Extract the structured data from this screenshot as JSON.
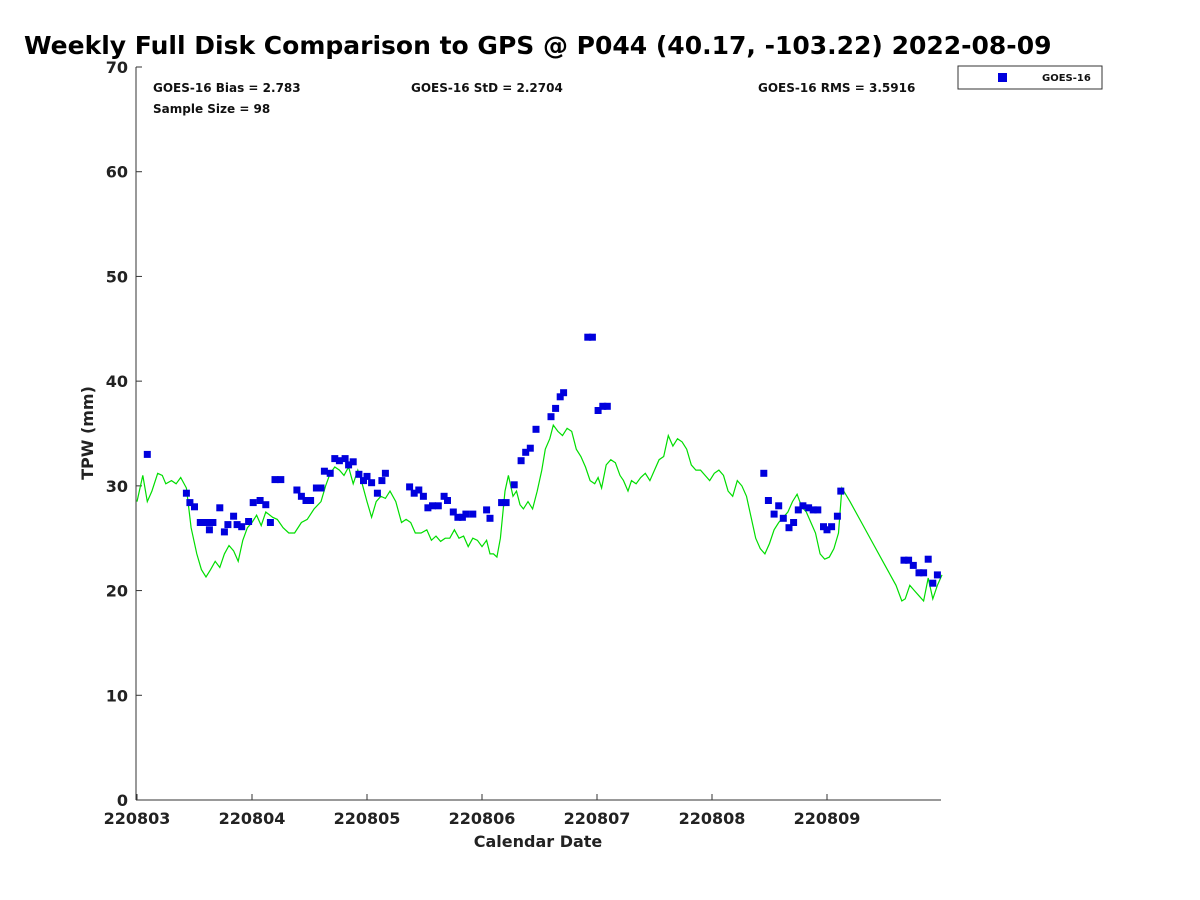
{
  "chart_data": {
    "type": "scatter",
    "title": "Weekly Full Disk Comparison to GPS @ P044 (40.17, -103.22) 2022-08-09",
    "xlabel": "Calendar Date",
    "ylabel": "TPW (mm)",
    "ylim": [
      0,
      70
    ],
    "yticks": [
      0,
      10,
      20,
      30,
      40,
      50,
      60,
      70
    ],
    "xlim": [
      0,
      7
    ],
    "xticks": [
      {
        "pos": 0,
        "label": "220803"
      },
      {
        "pos": 1,
        "label": "220804"
      },
      {
        "pos": 2,
        "label": "220805"
      },
      {
        "pos": 3,
        "label": "220806"
      },
      {
        "pos": 4,
        "label": "220807"
      },
      {
        "pos": 5,
        "label": "220808"
      },
      {
        "pos": 6,
        "label": "220809"
      }
    ],
    "grid": false,
    "legend_position": "top-right, outside plot",
    "colors": {
      "goes": "#0000dd",
      "gps": "#00dd00",
      "axis": "#333333"
    },
    "stats": {
      "bias": "GOES-16 Bias = 2.783",
      "sample": "Sample Size = 98",
      "std": "GOES-16 StD = 2.2704",
      "rms": "GOES-16 RMS = 3.5916"
    },
    "series": [
      {
        "name": "GOES-16",
        "marker": "square",
        "color": "#0000dd",
        "points": [
          [
            0.09,
            33.0
          ],
          [
            0.43,
            29.3
          ],
          [
            0.46,
            28.4
          ],
          [
            0.5,
            28.0
          ],
          [
            0.55,
            26.5
          ],
          [
            0.6,
            26.5
          ],
          [
            0.63,
            25.8
          ],
          [
            0.66,
            26.5
          ],
          [
            0.72,
            27.9
          ],
          [
            0.76,
            25.6
          ],
          [
            0.79,
            26.3
          ],
          [
            0.84,
            27.1
          ],
          [
            0.87,
            26.3
          ],
          [
            0.91,
            26.1
          ],
          [
            0.97,
            26.6
          ],
          [
            1.01,
            28.4
          ],
          [
            1.07,
            28.6
          ],
          [
            1.12,
            28.2
          ],
          [
            1.16,
            26.5
          ],
          [
            1.2,
            30.6
          ],
          [
            1.25,
            30.6
          ],
          [
            1.39,
            29.6
          ],
          [
            1.43,
            29.0
          ],
          [
            1.47,
            28.6
          ],
          [
            1.51,
            28.6
          ],
          [
            1.56,
            29.8
          ],
          [
            1.6,
            29.8
          ],
          [
            1.63,
            31.4
          ],
          [
            1.68,
            31.2
          ],
          [
            1.72,
            32.6
          ],
          [
            1.76,
            32.4
          ],
          [
            1.81,
            32.6
          ],
          [
            1.84,
            32.0
          ],
          [
            1.88,
            32.3
          ],
          [
            1.93,
            31.1
          ],
          [
            1.97,
            30.5
          ],
          [
            2.0,
            30.9
          ],
          [
            2.04,
            30.3
          ],
          [
            2.09,
            29.3
          ],
          [
            2.13,
            30.5
          ],
          [
            2.16,
            31.2
          ],
          [
            2.37,
            29.9
          ],
          [
            2.41,
            29.3
          ],
          [
            2.45,
            29.6
          ],
          [
            2.49,
            29.0
          ],
          [
            2.53,
            27.9
          ],
          [
            2.57,
            28.1
          ],
          [
            2.62,
            28.1
          ],
          [
            2.67,
            29.0
          ],
          [
            2.7,
            28.6
          ],
          [
            2.75,
            27.5
          ],
          [
            2.79,
            27.0
          ],
          [
            2.83,
            27.0
          ],
          [
            2.86,
            27.3
          ],
          [
            2.92,
            27.3
          ],
          [
            3.04,
            27.7
          ],
          [
            3.07,
            26.9
          ],
          [
            3.17,
            28.4
          ],
          [
            3.21,
            28.4
          ],
          [
            3.28,
            30.1
          ],
          [
            3.34,
            32.4
          ],
          [
            3.38,
            33.2
          ],
          [
            3.42,
            33.6
          ],
          [
            3.47,
            35.4
          ],
          [
            3.6,
            36.6
          ],
          [
            3.64,
            37.4
          ],
          [
            3.68,
            38.5
          ],
          [
            3.71,
            38.9
          ],
          [
            3.92,
            44.2
          ],
          [
            3.96,
            44.2
          ],
          [
            4.01,
            37.2
          ],
          [
            4.05,
            37.6
          ],
          [
            4.09,
            37.6
          ],
          [
            5.45,
            31.2
          ],
          [
            5.49,
            28.6
          ],
          [
            5.54,
            27.3
          ],
          [
            5.58,
            28.1
          ],
          [
            5.62,
            26.9
          ],
          [
            5.67,
            26.0
          ],
          [
            5.71,
            26.5
          ],
          [
            5.75,
            27.7
          ],
          [
            5.79,
            28.1
          ],
          [
            5.84,
            27.9
          ],
          [
            5.88,
            27.7
          ],
          [
            5.92,
            27.7
          ],
          [
            5.97,
            26.1
          ],
          [
            6.0,
            25.8
          ],
          [
            6.04,
            26.1
          ],
          [
            6.09,
            27.1
          ],
          [
            6.12,
            29.5
          ],
          [
            6.67,
            22.9
          ],
          [
            6.71,
            22.9
          ],
          [
            6.75,
            22.4
          ],
          [
            6.8,
            21.7
          ],
          [
            6.84,
            21.7
          ],
          [
            6.88,
            23.0
          ],
          [
            6.92,
            20.7
          ],
          [
            6.96,
            21.5
          ]
        ]
      },
      {
        "name": "GPS",
        "line": true,
        "color": "#00dd00",
        "points": [
          [
            0.0,
            28.5
          ],
          [
            0.05,
            31.0
          ],
          [
            0.09,
            28.5
          ],
          [
            0.13,
            29.5
          ],
          [
            0.18,
            31.2
          ],
          [
            0.22,
            31.0
          ],
          [
            0.25,
            30.2
          ],
          [
            0.3,
            30.5
          ],
          [
            0.34,
            30.2
          ],
          [
            0.38,
            30.8
          ],
          [
            0.43,
            29.8
          ],
          [
            0.47,
            26.0
          ],
          [
            0.52,
            23.5
          ],
          [
            0.56,
            22.0
          ],
          [
            0.6,
            21.3
          ],
          [
            0.64,
            22.0
          ],
          [
            0.68,
            22.8
          ],
          [
            0.72,
            22.2
          ],
          [
            0.76,
            23.5
          ],
          [
            0.8,
            24.3
          ],
          [
            0.84,
            23.8
          ],
          [
            0.88,
            22.8
          ],
          [
            0.92,
            24.8
          ],
          [
            0.96,
            26.0
          ],
          [
            1.0,
            26.5
          ],
          [
            1.04,
            27.2
          ],
          [
            1.08,
            26.2
          ],
          [
            1.12,
            27.5
          ],
          [
            1.18,
            27.0
          ],
          [
            1.22,
            26.8
          ],
          [
            1.27,
            26.0
          ],
          [
            1.32,
            25.5
          ],
          [
            1.37,
            25.5
          ],
          [
            1.43,
            26.5
          ],
          [
            1.48,
            26.8
          ],
          [
            1.54,
            27.8
          ],
          [
            1.6,
            28.5
          ],
          [
            1.64,
            30.0
          ],
          [
            1.68,
            31.2
          ],
          [
            1.72,
            31.8
          ],
          [
            1.76,
            31.5
          ],
          [
            1.8,
            31.0
          ],
          [
            1.84,
            31.8
          ],
          [
            1.88,
            30.2
          ],
          [
            1.92,
            31.5
          ],
          [
            1.95,
            30.5
          ],
          [
            2.0,
            28.5
          ],
          [
            2.04,
            27.0
          ],
          [
            2.08,
            28.5
          ],
          [
            2.12,
            29.0
          ],
          [
            2.16,
            28.8
          ],
          [
            2.2,
            29.5
          ],
          [
            2.25,
            28.5
          ],
          [
            2.3,
            26.5
          ],
          [
            2.34,
            26.8
          ],
          [
            2.38,
            26.5
          ],
          [
            2.42,
            25.5
          ],
          [
            2.47,
            25.5
          ],
          [
            2.52,
            25.8
          ],
          [
            2.56,
            24.8
          ],
          [
            2.6,
            25.2
          ],
          [
            2.64,
            24.7
          ],
          [
            2.68,
            25.0
          ],
          [
            2.72,
            25.0
          ],
          [
            2.76,
            25.8
          ],
          [
            2.8,
            25.0
          ],
          [
            2.84,
            25.2
          ],
          [
            2.88,
            24.2
          ],
          [
            2.92,
            25.0
          ],
          [
            2.96,
            24.8
          ],
          [
            3.0,
            24.2
          ],
          [
            3.04,
            24.8
          ],
          [
            3.07,
            23.5
          ],
          [
            3.1,
            23.5
          ],
          [
            3.13,
            23.2
          ],
          [
            3.16,
            25.0
          ],
          [
            3.2,
            29.5
          ],
          [
            3.23,
            31.0
          ],
          [
            3.27,
            29.0
          ],
          [
            3.3,
            29.5
          ],
          [
            3.33,
            28.2
          ],
          [
            3.36,
            27.8
          ],
          [
            3.4,
            28.5
          ],
          [
            3.44,
            27.8
          ],
          [
            3.48,
            29.5
          ],
          [
            3.52,
            31.5
          ],
          [
            3.55,
            33.5
          ],
          [
            3.59,
            34.5
          ],
          [
            3.62,
            35.8
          ],
          [
            3.66,
            35.2
          ],
          [
            3.7,
            34.8
          ],
          [
            3.74,
            35.5
          ],
          [
            3.78,
            35.2
          ],
          [
            3.82,
            33.5
          ],
          [
            3.86,
            32.8
          ],
          [
            3.9,
            31.8
          ],
          [
            3.94,
            30.5
          ],
          [
            3.98,
            30.2
          ],
          [
            4.01,
            30.8
          ],
          [
            4.04,
            29.8
          ],
          [
            4.08,
            32.0
          ],
          [
            4.12,
            32.5
          ],
          [
            4.16,
            32.2
          ],
          [
            4.2,
            31.0
          ],
          [
            4.23,
            30.5
          ],
          [
            4.27,
            29.5
          ],
          [
            4.3,
            30.5
          ],
          [
            4.34,
            30.2
          ],
          [
            4.38,
            30.8
          ],
          [
            4.42,
            31.2
          ],
          [
            4.46,
            30.5
          ],
          [
            4.5,
            31.5
          ],
          [
            4.54,
            32.5
          ],
          [
            4.58,
            32.8
          ],
          [
            4.62,
            34.8
          ],
          [
            4.66,
            33.8
          ],
          [
            4.7,
            34.5
          ],
          [
            4.74,
            34.2
          ],
          [
            4.78,
            33.5
          ],
          [
            4.82,
            32.0
          ],
          [
            4.86,
            31.5
          ],
          [
            4.9,
            31.5
          ],
          [
            4.94,
            31.0
          ],
          [
            4.98,
            30.5
          ],
          [
            5.02,
            31.2
          ],
          [
            5.06,
            31.5
          ],
          [
            5.1,
            31.0
          ],
          [
            5.14,
            29.5
          ],
          [
            5.18,
            29.0
          ],
          [
            5.22,
            30.5
          ],
          [
            5.26,
            30.0
          ],
          [
            5.3,
            29.0
          ],
          [
            5.34,
            27.0
          ],
          [
            5.38,
            25.0
          ],
          [
            5.42,
            24.0
          ],
          [
            5.46,
            23.5
          ],
          [
            5.5,
            24.5
          ],
          [
            5.54,
            25.8
          ],
          [
            5.58,
            26.5
          ],
          [
            5.62,
            27.0
          ],
          [
            5.66,
            27.5
          ],
          [
            5.7,
            28.5
          ],
          [
            5.74,
            29.2
          ],
          [
            5.78,
            28.0
          ],
          [
            5.82,
            27.5
          ],
          [
            5.86,
            26.5
          ],
          [
            5.9,
            25.5
          ],
          [
            5.94,
            23.5
          ],
          [
            5.98,
            23.0
          ],
          [
            6.02,
            23.2
          ],
          [
            6.06,
            24.0
          ],
          [
            6.1,
            25.5
          ],
          [
            6.13,
            29.8
          ],
          [
            6.2,
            28.5
          ],
          [
            6.3,
            26.5
          ],
          [
            6.4,
            24.5
          ],
          [
            6.5,
            22.5
          ],
          [
            6.6,
            20.5
          ],
          [
            6.65,
            19.0
          ],
          [
            6.68,
            19.2
          ],
          [
            6.72,
            20.5
          ],
          [
            6.76,
            20.0
          ],
          [
            6.8,
            19.5
          ],
          [
            6.84,
            19.0
          ],
          [
            6.88,
            21.2
          ],
          [
            6.92,
            19.2
          ],
          [
            6.96,
            20.5
          ],
          [
            7.0,
            21.5
          ]
        ]
      }
    ]
  }
}
